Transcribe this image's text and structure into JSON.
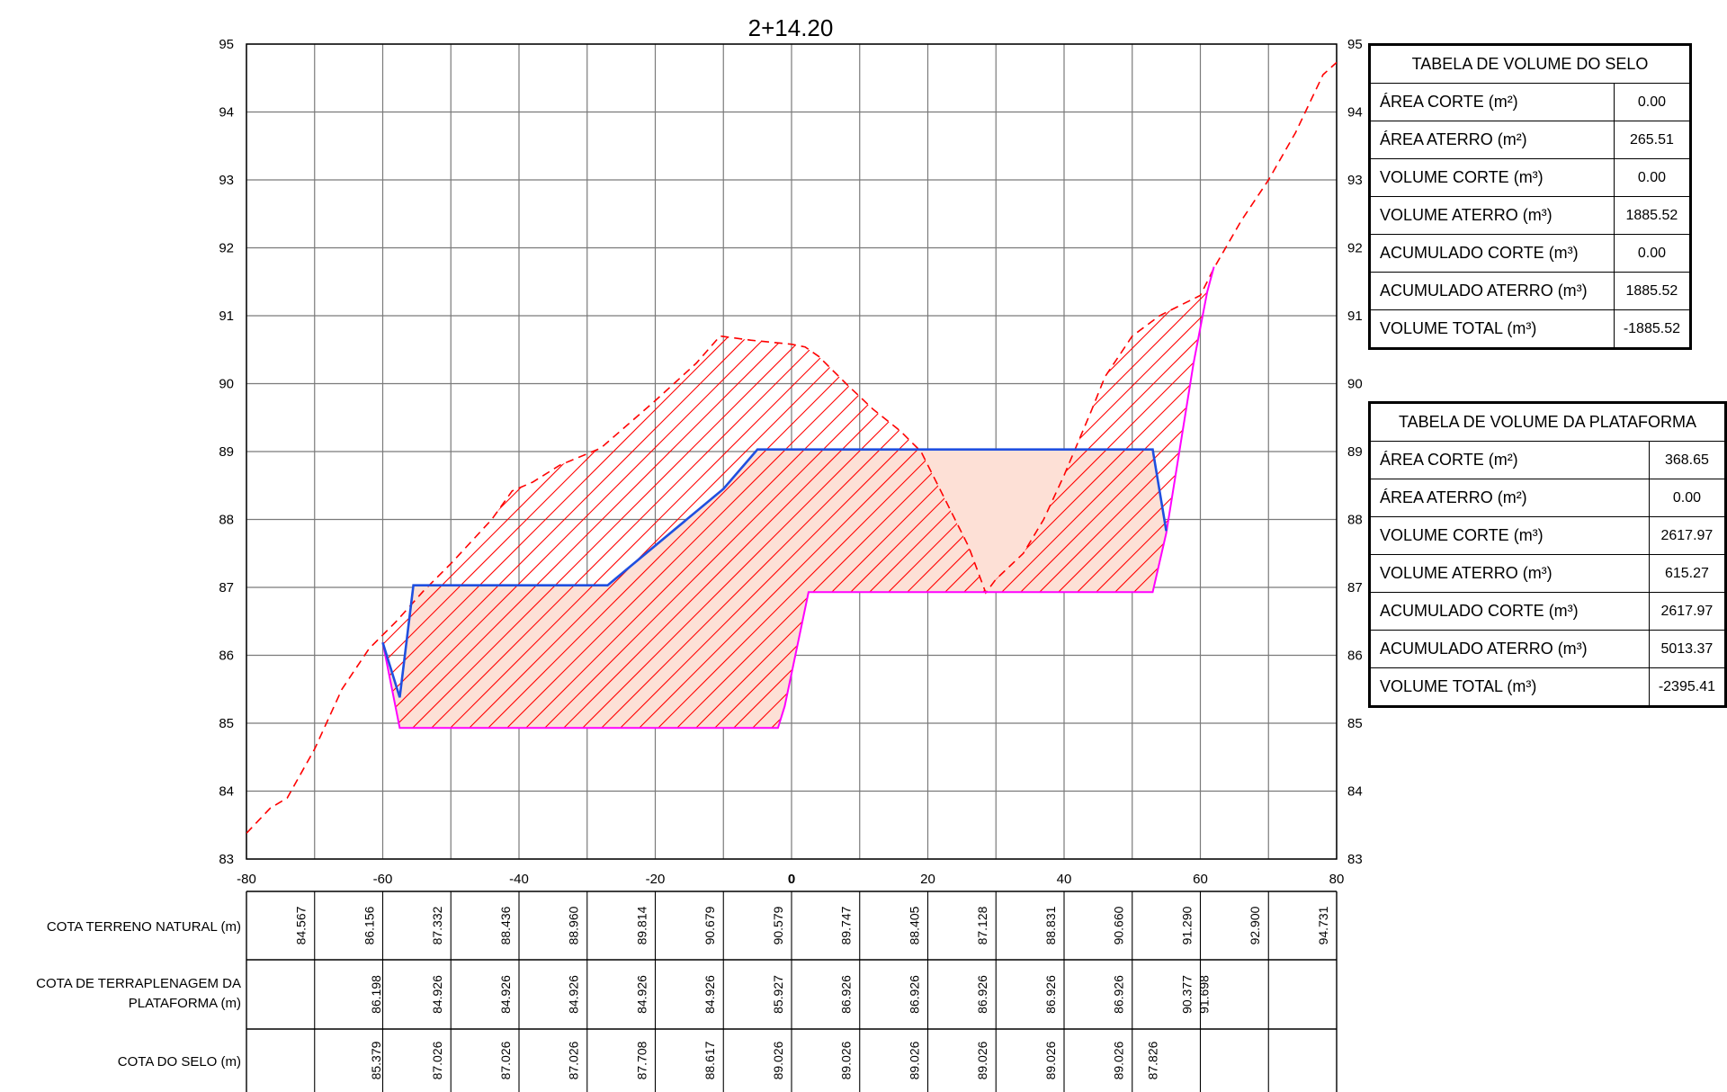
{
  "section_title": "2+14.20",
  "axes": {
    "x_ticks": [
      "-80",
      "-60",
      "-40",
      "-20",
      "0",
      "20",
      "40",
      "60",
      "80"
    ],
    "y_ticks": [
      "83",
      "84",
      "85",
      "86",
      "87",
      "88",
      "89",
      "90",
      "91",
      "92",
      "93",
      "94",
      "95"
    ],
    "x_range": [
      -80,
      80
    ],
    "y_range": [
      83,
      95
    ]
  },
  "profiles": {
    "terrain": [
      [
        -80,
        83.38
      ],
      [
        -76.5,
        83.75
      ],
      [
        -74,
        83.9
      ],
      [
        -70,
        84.62
      ],
      [
        -66,
        85.5
      ],
      [
        -62,
        86.1
      ],
      [
        -58,
        86.5
      ],
      [
        -54,
        86.95
      ],
      [
        -50,
        87.35
      ],
      [
        -44,
        88.0
      ],
      [
        -41,
        88.42
      ],
      [
        -38,
        88.55
      ],
      [
        -34,
        88.8
      ],
      [
        -28,
        89.05
      ],
      [
        -20,
        89.75
      ],
      [
        -14,
        90.3
      ],
      [
        -10.5,
        90.7
      ],
      [
        -6,
        90.64
      ],
      [
        0,
        90.58
      ],
      [
        2,
        90.54
      ],
      [
        4,
        90.4
      ],
      [
        8,
        90.0
      ],
      [
        12,
        89.62
      ],
      [
        16,
        89.3
      ],
      [
        19,
        89.0
      ],
      [
        22,
        88.4
      ],
      [
        26,
        87.6
      ],
      [
        28.5,
        86.92
      ],
      [
        30,
        87.12
      ],
      [
        34,
        87.5
      ],
      [
        37,
        88.0
      ],
      [
        40,
        88.65
      ],
      [
        44,
        89.6
      ],
      [
        46,
        90.1
      ],
      [
        50,
        90.7
      ],
      [
        54,
        91.0
      ],
      [
        60,
        91.3
      ],
      [
        62,
        91.7
      ],
      [
        66,
        92.4
      ],
      [
        70,
        93.0
      ],
      [
        74,
        93.7
      ],
      [
        78,
        94.55
      ],
      [
        80,
        94.73
      ]
    ],
    "platform": [
      [
        -60,
        86.19
      ],
      [
        -57.5,
        84.93
      ],
      [
        -2,
        84.93
      ],
      [
        -1,
        85.25
      ],
      [
        2.5,
        86.93
      ],
      [
        53,
        86.93
      ],
      [
        55,
        87.8
      ],
      [
        59,
        90.3
      ],
      [
        61,
        91.35
      ],
      [
        62,
        91.72
      ]
    ],
    "seal": [
      [
        -60,
        86.19
      ],
      [
        -57.5,
        85.38
      ],
      [
        -55.5,
        87.03
      ],
      [
        -27,
        87.03
      ],
      [
        -10,
        88.45
      ],
      [
        -5,
        89.03
      ],
      [
        53,
        89.03
      ],
      [
        55,
        87.83
      ]
    ]
  },
  "band": {
    "rows": [
      {
        "label": "COTA TERRENO NATURAL (m)",
        "values": [
          {
            "x": -72,
            "v": "84.567"
          },
          {
            "x": -62,
            "v": "86.156"
          },
          {
            "x": -52,
            "v": "87.332"
          },
          {
            "x": -42,
            "v": "88.436"
          },
          {
            "x": -32,
            "v": "88.960"
          },
          {
            "x": -22,
            "v": "89.814"
          },
          {
            "x": -12,
            "v": "90.679"
          },
          {
            "x": -2,
            "v": "90.579"
          },
          {
            "x": 8,
            "v": "89.747"
          },
          {
            "x": 18,
            "v": "88.405"
          },
          {
            "x": 28,
            "v": "87.128"
          },
          {
            "x": 38,
            "v": "88.831"
          },
          {
            "x": 48,
            "v": "90.660"
          },
          {
            "x": 58,
            "v": "91.290"
          },
          {
            "x": 68,
            "v": "92.900"
          },
          {
            "x": 78,
            "v": "94.731"
          }
        ]
      },
      {
        "label": "COTA DE TERRAPLENAGEM DA PLATAFORMA (m)",
        "label_line1": "COTA DE TERRAPLENAGEM DA",
        "label_line2": "PLATAFORMA (m)",
        "values": [
          {
            "x": -61,
            "v": "86.198"
          },
          {
            "x": -52,
            "v": "84.926"
          },
          {
            "x": -42,
            "v": "84.926"
          },
          {
            "x": -32,
            "v": "84.926"
          },
          {
            "x": -22,
            "v": "84.926"
          },
          {
            "x": -12,
            "v": "84.926"
          },
          {
            "x": -2,
            "v": "85.927"
          },
          {
            "x": 8,
            "v": "86.926"
          },
          {
            "x": 18,
            "v": "86.926"
          },
          {
            "x": 28,
            "v": "86.926"
          },
          {
            "x": 38,
            "v": "86.926"
          },
          {
            "x": 48,
            "v": "86.926"
          },
          {
            "x": 58,
            "v": "90.377"
          },
          {
            "x": 60.5,
            "v": "91.698"
          }
        ]
      },
      {
        "label": "COTA DO SELO (m)",
        "values": [
          {
            "x": -61,
            "v": "85.379"
          },
          {
            "x": -52,
            "v": "87.026"
          },
          {
            "x": -42,
            "v": "87.026"
          },
          {
            "x": -32,
            "v": "87.026"
          },
          {
            "x": -22,
            "v": "87.708"
          },
          {
            "x": -12,
            "v": "88.617"
          },
          {
            "x": -2,
            "v": "89.026"
          },
          {
            "x": 8,
            "v": "89.026"
          },
          {
            "x": 18,
            "v": "89.026"
          },
          {
            "x": 28,
            "v": "89.026"
          },
          {
            "x": 38,
            "v": "89.026"
          },
          {
            "x": 48,
            "v": "89.026"
          },
          {
            "x": 53,
            "v": "87.826"
          }
        ]
      }
    ]
  },
  "tables": {
    "selo": {
      "title": "TABELA DE VOLUME DO SELO",
      "rows": [
        {
          "label": "ÁREA CORTE (m²)",
          "value": "0.00"
        },
        {
          "label": "ÁREA ATERRO (m²)",
          "value": "265.51"
        },
        {
          "label": "VOLUME CORTE (m³)",
          "value": "0.00"
        },
        {
          "label": "VOLUME ATERRO (m³)",
          "value": "1885.52"
        },
        {
          "label": "ACUMULADO CORTE (m³)",
          "value": "0.00"
        },
        {
          "label": "ACUMULADO ATERRO (m³)",
          "value": "1885.52"
        },
        {
          "label": "VOLUME TOTAL (m³)",
          "value": "-1885.52"
        }
      ]
    },
    "plataforma": {
      "title": "TABELA DE VOLUME DA PLATAFORMA",
      "rows": [
        {
          "label": "ÁREA CORTE (m²)",
          "value": "368.65"
        },
        {
          "label": "ÁREA ATERRO (m²)",
          "value": "0.00"
        },
        {
          "label": "VOLUME CORTE (m³)",
          "value": "2617.97"
        },
        {
          "label": "VOLUME ATERRO (m³)",
          "value": "615.27"
        },
        {
          "label": "ACUMULADO CORTE (m³)",
          "value": "2617.97"
        },
        {
          "label": "ACUMULADO ATERRO (m³)",
          "value": "5013.37"
        },
        {
          "label": "VOLUME TOTAL (m³)",
          "value": "-2395.41"
        }
      ]
    }
  },
  "colors": {
    "terrain": "#ff0000",
    "platform": "#ff00ff",
    "seal": "#1f4fe0",
    "fill": "#fde0d6",
    "grid": "#7a7a7a"
  }
}
